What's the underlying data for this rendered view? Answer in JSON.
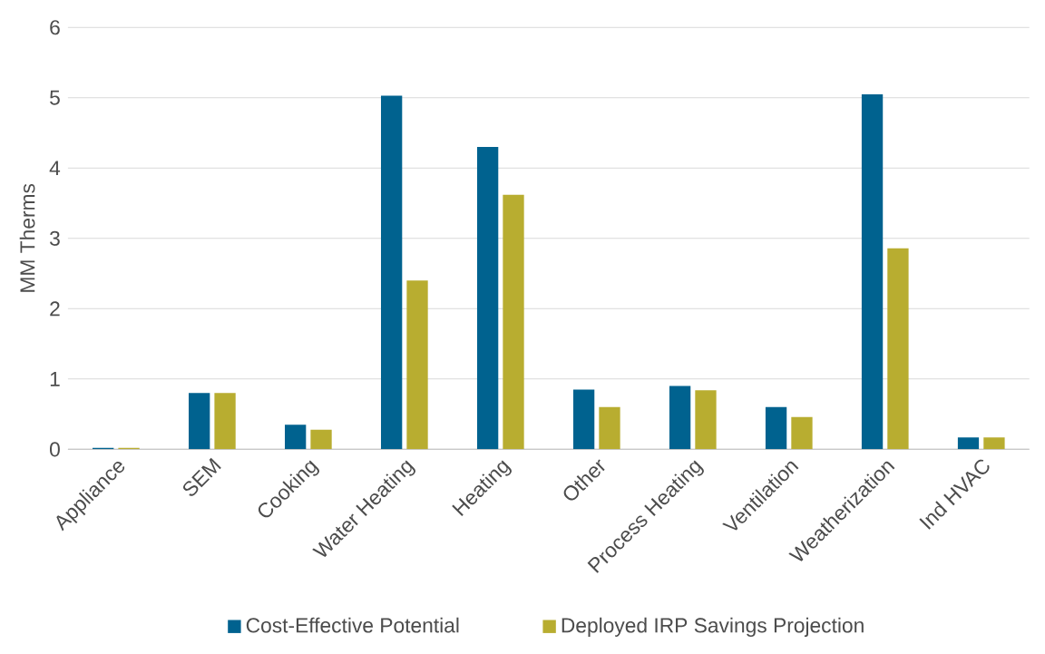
{
  "chart_data": {
    "type": "bar",
    "ylabel": "MM Therms",
    "categories": [
      "Appliance",
      "SEM",
      "Cooking",
      "Water Heating",
      "Heating",
      "Other",
      "Process Heating",
      "Ventilation",
      "Weatherization",
      "Ind HVAC"
    ],
    "series": [
      {
        "name": "Cost-Effective Potential",
        "color": "#00628f",
        "values": [
          0.02,
          0.8,
          0.35,
          5.03,
          4.3,
          0.85,
          0.9,
          0.6,
          5.05,
          0.17
        ]
      },
      {
        "name": "Deployed IRP Savings Projection",
        "color": "#b8ad30",
        "values": [
          0.02,
          0.8,
          0.28,
          2.4,
          3.62,
          0.6,
          0.84,
          0.46,
          2.86,
          0.17
        ]
      }
    ],
    "ylim": [
      0,
      6
    ],
    "yticks": [
      0,
      1,
      2,
      3,
      4,
      5,
      6
    ],
    "grid": "y",
    "legend": "bottom"
  }
}
